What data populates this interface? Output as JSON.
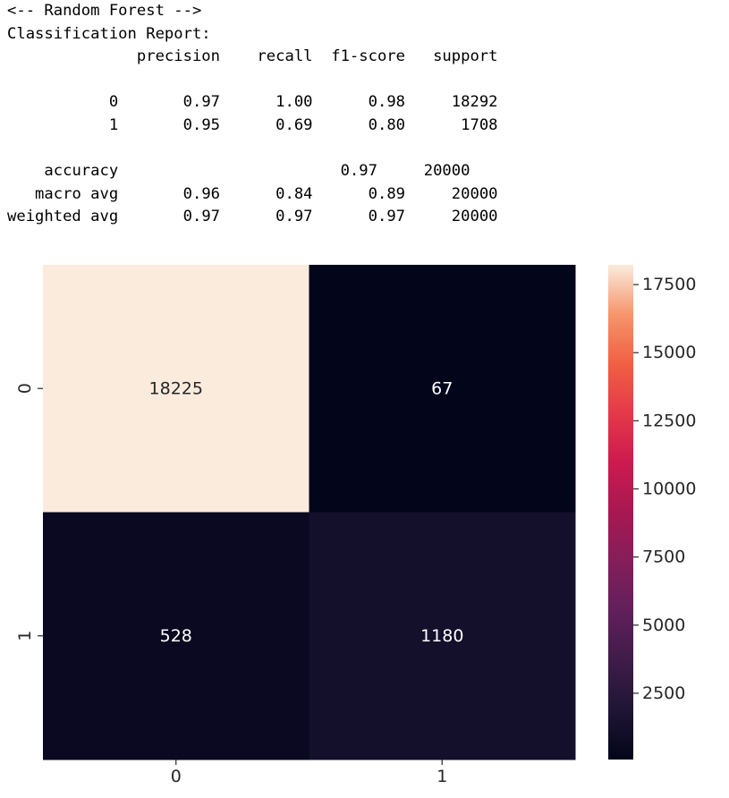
{
  "report": {
    "header_comment": "<-- Random Forest -->",
    "title": "Classification Report:",
    "columns": [
      "precision",
      "recall",
      "f1-score",
      "support"
    ],
    "rows": [
      {
        "label": "0",
        "precision": "0.97",
        "recall": "1.00",
        "f1": "0.98",
        "support": "18292"
      },
      {
        "label": "1",
        "precision": "0.95",
        "recall": "0.69",
        "f1": "0.80",
        "support": "1708"
      },
      {
        "label": "accuracy",
        "precision": "",
        "recall": "",
        "f1": "0.97",
        "support": "20000"
      },
      {
        "label": "macro avg",
        "precision": "0.96",
        "recall": "0.84",
        "f1": "0.89",
        "support": "20000"
      },
      {
        "label": "weighted avg",
        "precision": "0.97",
        "recall": "0.97",
        "f1": "0.97",
        "support": "20000"
      }
    ]
  },
  "chart_data": {
    "type": "heatmap",
    "title": "",
    "xlabel": "",
    "ylabel": "",
    "x_categories": [
      "0",
      "1"
    ],
    "y_categories": [
      "0",
      "1"
    ],
    "values": [
      [
        18225,
        67
      ],
      [
        528,
        1180
      ]
    ],
    "annotations": [
      [
        "18225",
        "67"
      ],
      [
        "528",
        "1180"
      ]
    ],
    "colormap": "rocket",
    "vmin": 67,
    "vmax": 18225,
    "colorbar_ticks": [
      2500,
      5000,
      7500,
      10000,
      12500,
      15000,
      17500
    ],
    "colorbar_tick_labels": [
      "2500",
      "5000",
      "7500",
      "10000",
      "12500",
      "15000",
      "17500"
    ],
    "colorbar_placement": "right",
    "text_color_light": "#ffffff",
    "text_color_dark": "#262626"
  }
}
